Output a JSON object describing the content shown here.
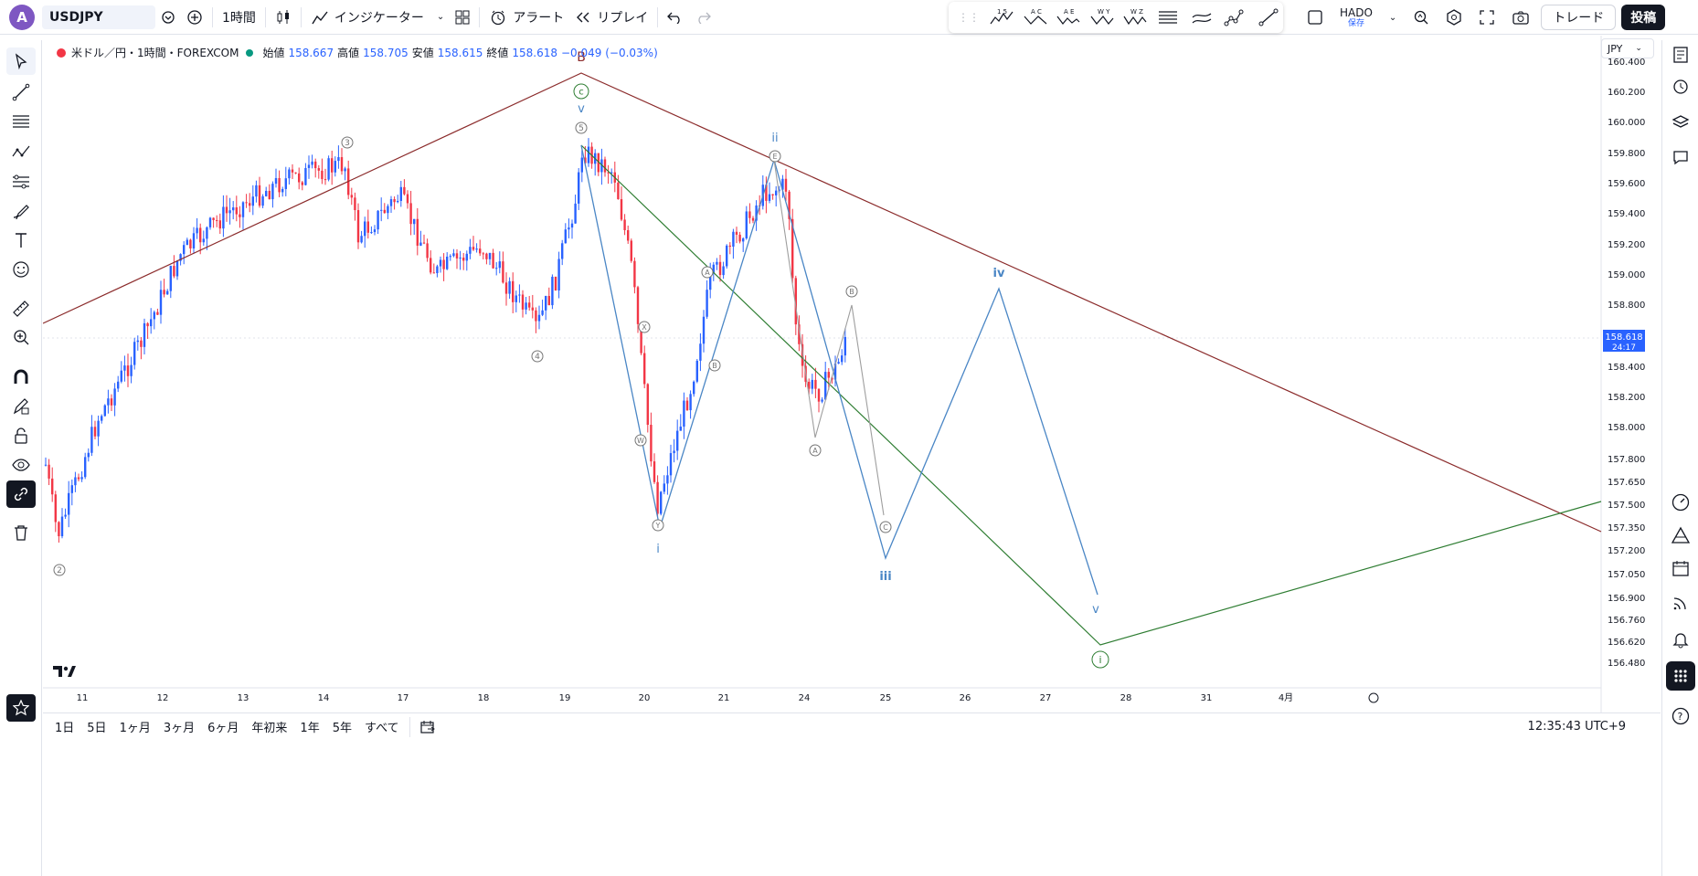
{
  "topbar": {
    "avatar_letter": "A",
    "symbol": "USDJPY",
    "interval": "1時間",
    "indicators_label": "インジケーター",
    "alert_label": "アラート",
    "replay_label": "リプレイ",
    "layout_name": "HADO",
    "layout_status": "保存",
    "trade_label": "トレード",
    "post_label": "投稿",
    "draw_tools": [
      "1 5",
      "A C",
      "A E",
      "W Y",
      "W Z"
    ]
  },
  "legend": {
    "title": "米ドル／円・1時間・FOREXCOM",
    "open_label": "始値",
    "open": "158.667",
    "high_label": "高値",
    "high": "158.705",
    "low_label": "安値",
    "low": "158.615",
    "close_label": "終値",
    "close": "158.618",
    "change": "−0.049 (−0.03%)"
  },
  "price_axis": {
    "currency": "JPY",
    "ticks": [
      "160.400",
      "160.200",
      "160.000",
      "159.800",
      "159.600",
      "159.400",
      "159.200",
      "159.000",
      "158.800",
      "158.400",
      "158.200",
      "158.000",
      "157.800",
      "157.650",
      "157.500",
      "157.350",
      "157.200",
      "157.050",
      "156.900",
      "156.760",
      "156.620",
      "156.480"
    ],
    "last_price": "158.618",
    "countdown": "24:17"
  },
  "time_axis": {
    "ticks": [
      "11",
      "12",
      "13",
      "14",
      "17",
      "18",
      "19",
      "20",
      "21",
      "24",
      "25",
      "26",
      "27",
      "28",
      "31",
      "4月"
    ]
  },
  "bottom": {
    "ranges": [
      "1日",
      "5日",
      "1ヶ月",
      "3ヶ月",
      "6ヶ月",
      "年初来",
      "1年",
      "5年",
      "すべて"
    ],
    "clock": "12:35:43 UTC+9"
  },
  "wave_labels": {
    "B": "B",
    "c": "c",
    "v_top": "v",
    "five": "5",
    "three": "3",
    "four": "4",
    "two": "2",
    "ii": "ii",
    "i": "i",
    "iii": "iii",
    "iv": "iv",
    "v_low": "v",
    "circ_i": "i",
    "A1": "A",
    "B1": "B",
    "X": "X",
    "W": "W",
    "Y": "Y",
    "E": "E",
    "B2": "B",
    "A2": "A",
    "C2": "C"
  },
  "chart_data": {
    "type": "candlestick",
    "title": "米ドル／円・1時間・FOREXCOM",
    "ylim": [
      156.4,
      160.5
    ],
    "last": 158.618,
    "colors": {
      "up": "#089981",
      "down": "#f23645",
      "candle_up": "#2962ff",
      "candle_down": "#f23645"
    }
  }
}
